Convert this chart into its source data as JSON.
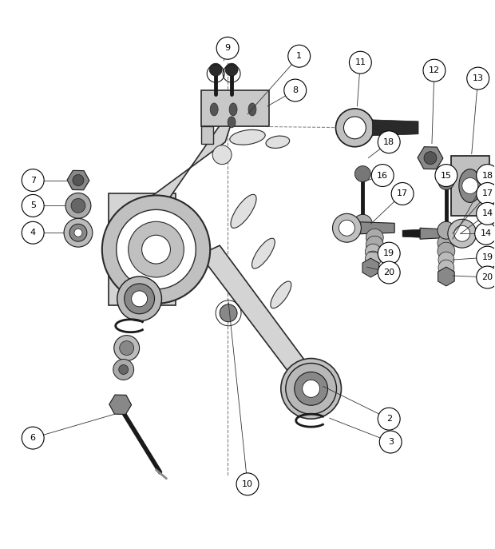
{
  "bg_color": "#ffffff",
  "lc": "#000000",
  "dc": "#1a1a1a",
  "arm_fill": "#d4d4d4",
  "arm_edge": "#2a2a2a",
  "arm_lw": 1.2,
  "figure_size": [
    6.2,
    6.87
  ],
  "dpi": 100
}
